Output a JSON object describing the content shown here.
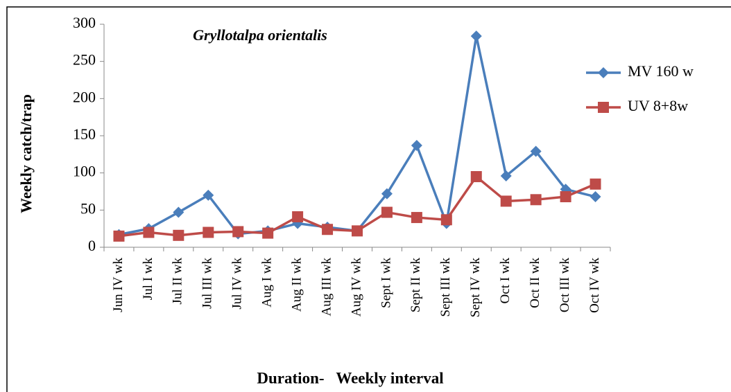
{
  "chart_data": {
    "type": "line",
    "title": "Gryllotalpa orientalis",
    "y_label": "Weekly catch/trap",
    "x_label": "Duration-   Weekly interval",
    "categories": [
      "Jun IV wk",
      "Jul I wk",
      "Jul II wk",
      "Jul III wk",
      "Jul IV wk",
      "Aug I wk",
      "Aug II wk",
      "Aug III wk",
      "Aug IV wk",
      "Sept I wk",
      "Sept II wk",
      "Sept III wk",
      "Sept IV wk",
      "Oct I wk",
      "Oct II wk",
      "Oct III wk",
      "Oct IV wk"
    ],
    "series": [
      {
        "name": "MV 160 w",
        "color": "#4a7ebb",
        "marker": "diamond",
        "values": [
          17,
          25,
          47,
          70,
          18,
          22,
          32,
          27,
          22,
          72,
          137,
          32,
          284,
          96,
          129,
          78,
          68
        ]
      },
      {
        "name": "UV 8+8w",
        "color": "#be4b48",
        "marker": "square",
        "values": [
          15,
          20,
          16,
          20,
          21,
          19,
          41,
          24,
          22,
          47,
          40,
          37,
          95,
          62,
          64,
          68,
          85
        ]
      }
    ],
    "ylim": [
      0,
      300
    ],
    "yticks": [
      0,
      50,
      100,
      150,
      200,
      250,
      300
    ],
    "grid": false,
    "legend": "right"
  }
}
